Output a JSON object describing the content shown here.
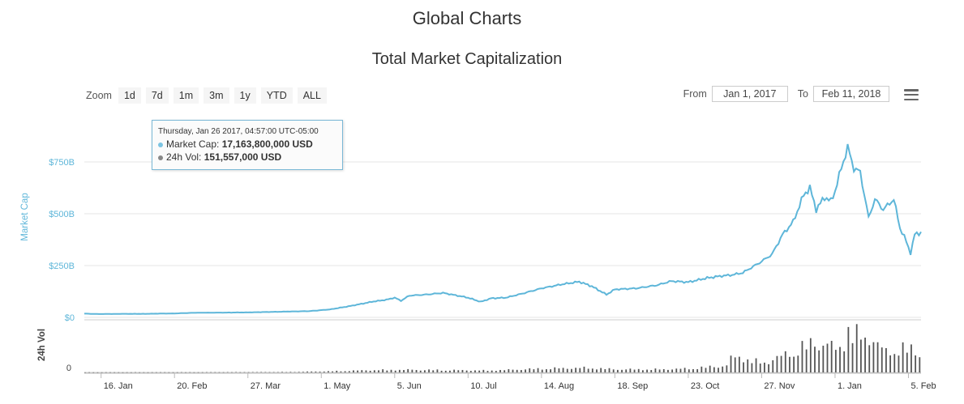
{
  "page": {
    "title": "Global Charts"
  },
  "zoom": {
    "label": "Zoom",
    "buttons": [
      "1d",
      "7d",
      "1m",
      "3m",
      "1y",
      "YTD",
      "ALL"
    ]
  },
  "range": {
    "from_label": "From",
    "from_value": "Jan 1, 2017",
    "to_label": "To",
    "to_value": "Feb 11, 2018"
  },
  "menu": {
    "icon": "hamburger-menu-icon"
  },
  "tooltip": {
    "date": "Thursday, Jan 26 2017, 04:57:00 UTC-05:00",
    "market_cap_label": "Market Cap:",
    "market_cap_value": "17,163,800,000 USD",
    "volume_label": "24h Vol:",
    "volume_value": "151,557,000 USD"
  },
  "colors": {
    "market_cap": "#5eb6d9",
    "volume": "#555555",
    "grid": "#e6e6e6"
  },
  "chart_data": {
    "type": "line",
    "title": "Total Market Capitalization",
    "ylabel": "Market Cap",
    "y_ticks": [
      "$0",
      "$250B",
      "$500B",
      "$750B"
    ],
    "ylim": [
      0,
      850
    ],
    "y_unit": "B USD",
    "x_range": [
      "2017-01-08",
      "2018-02-11"
    ],
    "x_ticks": [
      {
        "label": "16. Jan",
        "date": "2017-01-16"
      },
      {
        "label": "20. Feb",
        "date": "2017-02-20"
      },
      {
        "label": "27. Mar",
        "date": "2017-03-27"
      },
      {
        "label": "1. May",
        "date": "2017-05-01"
      },
      {
        "label": "5. Jun",
        "date": "2017-06-05"
      },
      {
        "label": "10. Jul",
        "date": "2017-07-10"
      },
      {
        "label": "14. Aug",
        "date": "2017-08-14"
      },
      {
        "label": "18. Sep",
        "date": "2017-09-18"
      },
      {
        "label": "23. Oct",
        "date": "2017-10-23"
      },
      {
        "label": "27. Nov",
        "date": "2017-11-27"
      },
      {
        "label": "1. Jan",
        "date": "2018-01-01"
      },
      {
        "label": "5. Feb",
        "date": "2018-02-05"
      }
    ],
    "grid": true,
    "legend": "none",
    "series": [
      {
        "name": "Market Cap",
        "points": [
          [
            "2017-01-08",
            18
          ],
          [
            "2017-01-16",
            16
          ],
          [
            "2017-01-26",
            17
          ],
          [
            "2017-02-05",
            17
          ],
          [
            "2017-02-20",
            19
          ],
          [
            "2017-03-01",
            22
          ],
          [
            "2017-03-15",
            23
          ],
          [
            "2017-03-27",
            24
          ],
          [
            "2017-04-10",
            27
          ],
          [
            "2017-04-25",
            30
          ],
          [
            "2017-05-05",
            38
          ],
          [
            "2017-05-15",
            55
          ],
          [
            "2017-05-25",
            75
          ],
          [
            "2017-06-01",
            85
          ],
          [
            "2017-06-05",
            95
          ],
          [
            "2017-06-08",
            80
          ],
          [
            "2017-06-12",
            105
          ],
          [
            "2017-06-20",
            110
          ],
          [
            "2017-06-28",
            118
          ],
          [
            "2017-07-05",
            105
          ],
          [
            "2017-07-10",
            95
          ],
          [
            "2017-07-16",
            75
          ],
          [
            "2017-07-21",
            92
          ],
          [
            "2017-07-28",
            95
          ],
          [
            "2017-08-05",
            115
          ],
          [
            "2017-08-14",
            140
          ],
          [
            "2017-08-24",
            160
          ],
          [
            "2017-09-01",
            172
          ],
          [
            "2017-09-07",
            150
          ],
          [
            "2017-09-14",
            110
          ],
          [
            "2017-09-18",
            135
          ],
          [
            "2017-09-28",
            140
          ],
          [
            "2017-10-08",
            155
          ],
          [
            "2017-10-15",
            175
          ],
          [
            "2017-10-23",
            170
          ],
          [
            "2017-11-01",
            190
          ],
          [
            "2017-11-08",
            200
          ],
          [
            "2017-11-13",
            205
          ],
          [
            "2017-11-18",
            215
          ],
          [
            "2017-11-27",
            270
          ],
          [
            "2017-12-02",
            305
          ],
          [
            "2017-12-07",
            400
          ],
          [
            "2017-12-12",
            460
          ],
          [
            "2017-12-17",
            590
          ],
          [
            "2017-12-20",
            625
          ],
          [
            "2017-12-23",
            520
          ],
          [
            "2017-12-27",
            580
          ],
          [
            "2017-12-30",
            560
          ],
          [
            "2018-01-01",
            610
          ],
          [
            "2018-01-04",
            720
          ],
          [
            "2018-01-07",
            820
          ],
          [
            "2018-01-10",
            720
          ],
          [
            "2018-01-13",
            700
          ],
          [
            "2018-01-17",
            480
          ],
          [
            "2018-01-20",
            570
          ],
          [
            "2018-01-24",
            520
          ],
          [
            "2018-01-29",
            570
          ],
          [
            "2018-02-01",
            430
          ],
          [
            "2018-02-03",
            390
          ],
          [
            "2018-02-06",
            310
          ],
          [
            "2018-02-08",
            400
          ],
          [
            "2018-02-11",
            410
          ]
        ]
      }
    ],
    "volume": {
      "name": "24h Vol",
      "ylabel": "24h Vol",
      "y_ticks": [
        "0"
      ],
      "ylim": [
        0,
        60
      ],
      "y_unit": "B USD",
      "points": [
        [
          "2017-01-08",
          0.2
        ],
        [
          "2017-03-01",
          0.3
        ],
        [
          "2017-04-15",
          0.6
        ],
        [
          "2017-05-05",
          1.5
        ],
        [
          "2017-05-25",
          3
        ],
        [
          "2017-06-10",
          3.5
        ],
        [
          "2017-07-01",
          3
        ],
        [
          "2017-07-20",
          2.5
        ],
        [
          "2017-08-14",
          5
        ],
        [
          "2017-09-05",
          6
        ],
        [
          "2017-09-18",
          4
        ],
        [
          "2017-10-10",
          4
        ],
        [
          "2017-10-23",
          5
        ],
        [
          "2017-11-10",
          9
        ],
        [
          "2017-11-13",
          22
        ],
        [
          "2017-11-27",
          12
        ],
        [
          "2017-12-07",
          22
        ],
        [
          "2017-12-12",
          28
        ],
        [
          "2017-12-17",
          34
        ],
        [
          "2017-12-22",
          40
        ],
        [
          "2018-01-01",
          32
        ],
        [
          "2018-01-05",
          38
        ],
        [
          "2018-01-07",
          55
        ],
        [
          "2018-01-10",
          48
        ],
        [
          "2018-01-16",
          50
        ],
        [
          "2018-01-20",
          36
        ],
        [
          "2018-01-25",
          28
        ],
        [
          "2018-02-01",
          30
        ],
        [
          "2018-02-06",
          32
        ],
        [
          "2018-02-11",
          22
        ]
      ]
    }
  }
}
